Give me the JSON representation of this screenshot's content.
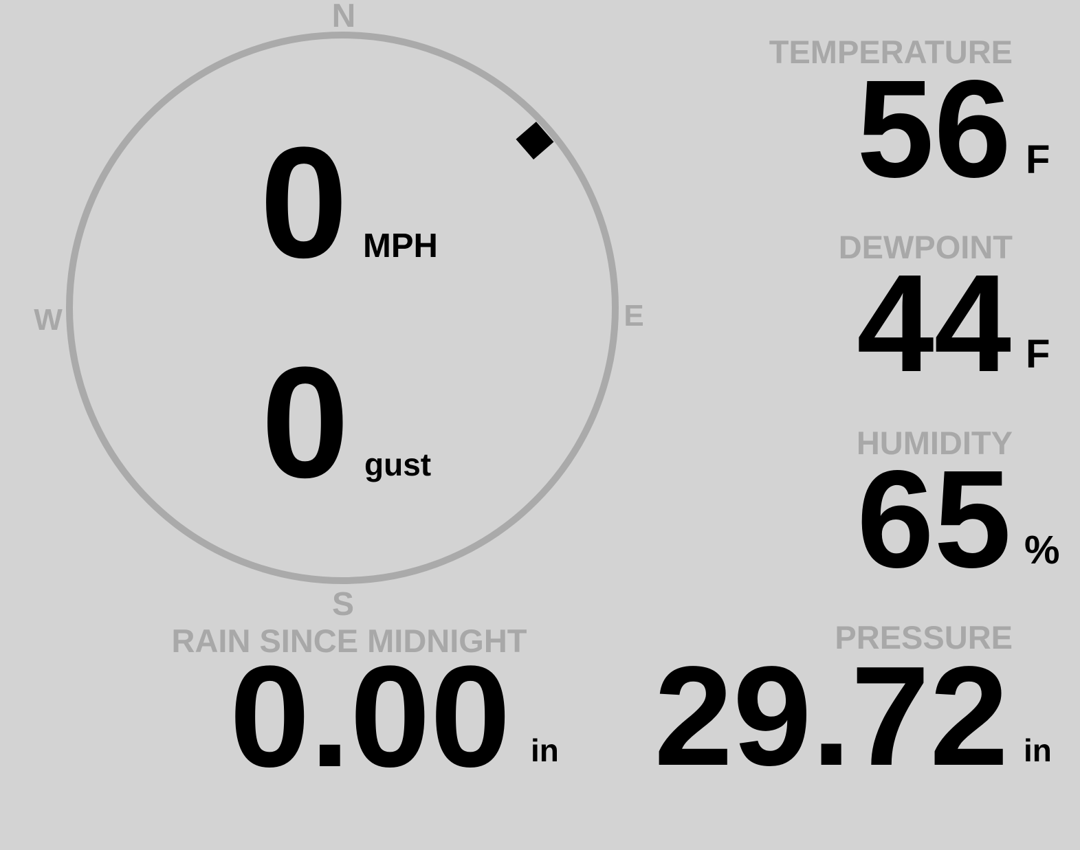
{
  "compass": {
    "north": "N",
    "south": "S",
    "east": "E",
    "west": "W",
    "wind_direction_deg": 49,
    "ring_color": "#aaaaaa"
  },
  "wind": {
    "speed": "0",
    "speed_unit": "MPH",
    "gust": "0",
    "gust_unit": "gust"
  },
  "temperature": {
    "label": "TEMPERATURE",
    "value": "56",
    "unit": "F"
  },
  "dewpoint": {
    "label": "DEWPOINT",
    "value": "44",
    "unit": "F"
  },
  "humidity": {
    "label": "HUMIDITY",
    "value": "65",
    "unit": "%"
  },
  "rain": {
    "label": "RAIN SINCE MIDNIGHT",
    "value": "0.00",
    "unit": "in"
  },
  "pressure": {
    "label": "PRESSURE",
    "value": "29.72",
    "unit": "in"
  },
  "colors": {
    "background": "#d3d3d3",
    "label": "#a8a8a8",
    "value": "#000000"
  }
}
